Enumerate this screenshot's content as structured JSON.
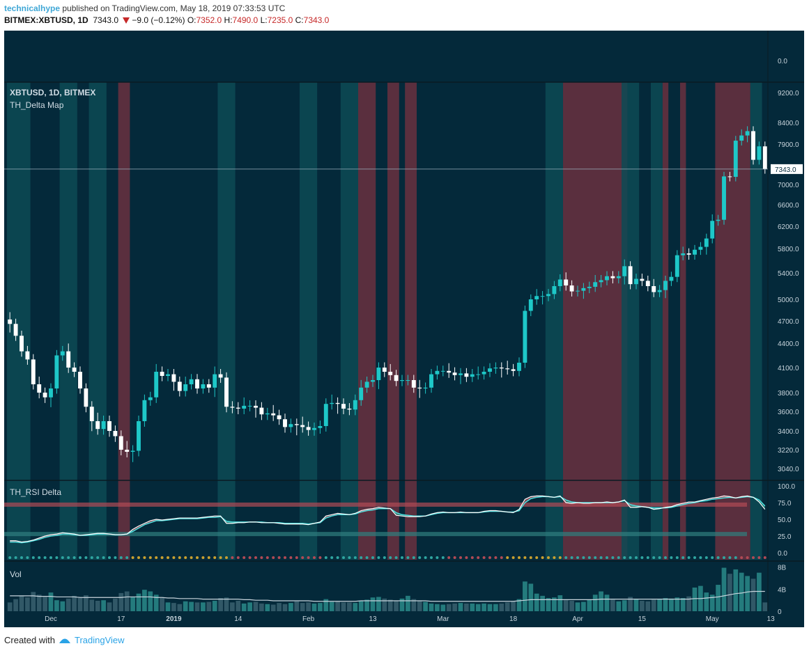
{
  "header": {
    "user": "technicalhype",
    "published": "published on TradingView.com, May 18, 2019 07:33:53 UTC",
    "symbol": "BITMEX:XBTUSD, 1D",
    "last": "7343.0",
    "change": "−9.0 (−0.12%)",
    "o_label": "O:",
    "o": "7352.0",
    "h_label": "H:",
    "h": "7490.0",
    "l_label": "L:",
    "l": "7235.0",
    "c_label": "C:",
    "c": "7343.0"
  },
  "footer": {
    "created": "Created with",
    "brand": "TradingView",
    "icon": "tradingview-logo-icon"
  },
  "colors": {
    "background": "#04293a",
    "border": "#1a4a60",
    "text": "#c8d4dc",
    "bull": "#1ec8c8",
    "bear": "#ffffff",
    "red_band": "#6a3040",
    "teal_band": "#0d4a55",
    "rsi_line": "#ffffff",
    "rsi_signal": "#4fe0e0",
    "rsi_up_fill": "#2f8f7f",
    "rsi_down_fill": "#a84a55",
    "overbought": "#b04a55",
    "oversold": "#2f7f7f",
    "wm_s": "#e05050",
    "wm_b": "#f0a030"
  },
  "chart_data": [
    {
      "type": "line",
      "title": "",
      "panel": "top-strip",
      "values": [
        0.0
      ],
      "ytick": "0.0"
    },
    {
      "type": "candlestick",
      "title": "XBTUSD, 1D, BITMEX",
      "indicator": "TH_Delta Map",
      "last_price": "7343.0",
      "ylim": [
        2950,
        9350
      ],
      "yticks": [
        {
          "v": 9200,
          "label": "9200.0"
        },
        {
          "v": 8400,
          "label": "8400.0"
        },
        {
          "v": 7900,
          "label": "7900.0"
        },
        {
          "v": 7000,
          "label": "7000.0"
        },
        {
          "v": 6600,
          "label": "6600.0"
        },
        {
          "v": 6200,
          "label": "6200.0"
        },
        {
          "v": 5800,
          "label": "5800.0"
        },
        {
          "v": 5400,
          "label": "5400.0"
        },
        {
          "v": 5000,
          "label": "5000.0"
        },
        {
          "v": 4700,
          "label": "4700.0"
        },
        {
          "v": 4400,
          "label": "4400.0"
        },
        {
          "v": 4100,
          "label": "4100.0"
        },
        {
          "v": 3800,
          "label": "3800.0"
        },
        {
          "v": 3600,
          "label": "3600.0"
        },
        {
          "v": 3400,
          "label": "3400.0"
        },
        {
          "v": 3220,
          "label": "3220.0"
        },
        {
          "v": 3040,
          "label": "3040.0"
        }
      ],
      "x_tick_labels": [
        {
          "i": 7,
          "label": "Dec"
        },
        {
          "i": 19,
          "label": "17"
        },
        {
          "i": 28,
          "label": "2019"
        },
        {
          "i": 39,
          "label": "14"
        },
        {
          "i": 51,
          "label": "Feb"
        },
        {
          "i": 62,
          "label": "13"
        },
        {
          "i": 74,
          "label": "Mar"
        },
        {
          "i": 86,
          "label": "18"
        },
        {
          "i": 97,
          "label": "Apr"
        },
        {
          "i": 108,
          "label": "15"
        },
        {
          "i": 120,
          "label": "May"
        },
        {
          "i": 130,
          "label": "13"
        }
      ],
      "close": [
        4660,
        4500,
        4300,
        4200,
        3900,
        3800,
        3750,
        3850,
        4250,
        4300,
        4100,
        4050,
        3850,
        3650,
        3500,
        3420,
        3500,
        3400,
        3350,
        3220,
        3200,
        3210,
        3500,
        3720,
        3750,
        4050,
        4000,
        4020,
        3930,
        3820,
        3900,
        3960,
        3850,
        3900,
        3860,
        4020,
        3980,
        3650,
        3640,
        3630,
        3660,
        3660,
        3640,
        3570,
        3580,
        3560,
        3520,
        3440,
        3470,
        3460,
        3440,
        3410,
        3430,
        3450,
        3680,
        3690,
        3680,
        3630,
        3620,
        3720,
        3860,
        3930,
        3950,
        4100,
        4050,
        4010,
        3940,
        3950,
        3950,
        3860,
        3850,
        3860,
        4020,
        4060,
        4060,
        4040,
        4010,
        4030,
        3990,
        4020,
        4020,
        4050,
        4090,
        4100,
        4090,
        4080,
        4060,
        4160,
        4840,
        5000,
        5050,
        5050,
        5080,
        5200,
        5300,
        5210,
        5120,
        5130,
        5170,
        5190,
        5260,
        5290,
        5350,
        5320,
        5350,
        5510,
        5230,
        5310,
        5280,
        5200,
        5110,
        5140,
        5280,
        5340,
        5690,
        5720,
        5700,
        5780,
        5830,
        5980,
        6300,
        6320,
        7180,
        7170,
        7980,
        8100,
        8200,
        7550,
        7850,
        7343
      ],
      "red_bands": [
        [
          19,
          20
        ],
        [
          60,
          62
        ],
        [
          65,
          66
        ],
        [
          68,
          69
        ],
        [
          95,
          105
        ],
        [
          112,
          112
        ],
        [
          115,
          115
        ],
        [
          121,
          126
        ]
      ],
      "teal_bands": [
        [
          0,
          3
        ],
        [
          9,
          11
        ],
        [
          14,
          16
        ],
        [
          36,
          38
        ],
        [
          50,
          52
        ],
        [
          57,
          59
        ],
        [
          92,
          94
        ],
        [
          105,
          107
        ],
        [
          110,
          111
        ],
        [
          127,
          128
        ]
      ]
    },
    {
      "type": "line",
      "title": "TH_RSI Delta",
      "ylim": [
        0,
        100
      ],
      "yticks": [
        {
          "v": 100,
          "label": "100.0"
        },
        {
          "v": 75,
          "label": "75.0"
        },
        {
          "v": 50,
          "label": "50.0"
        },
        {
          "v": 25,
          "label": "25.0"
        },
        {
          "v": 0,
          "label": "0.0"
        }
      ],
      "overbought": 72,
      "oversold": 28,
      "series": [
        {
          "values": [
            18,
            18,
            16,
            17,
            19,
            22,
            25,
            27,
            28,
            30,
            29,
            28,
            26,
            27,
            28,
            29,
            29,
            28,
            27,
            27,
            28,
            35,
            40,
            44,
            48,
            50,
            49,
            50,
            51,
            52,
            52,
            52,
            52,
            53,
            54,
            55,
            55,
            44,
            44,
            45,
            45,
            46,
            46,
            45,
            45,
            45,
            44,
            43,
            43,
            43,
            43,
            42,
            44,
            46,
            55,
            57,
            59,
            58,
            57,
            59,
            63,
            65,
            66,
            68,
            67,
            66,
            56,
            55,
            54,
            54,
            54,
            55,
            58,
            60,
            61,
            60,
            60,
            61,
            60,
            60,
            60,
            62,
            63,
            63,
            62,
            61,
            60,
            65,
            80,
            84,
            85,
            85,
            84,
            83,
            85,
            75,
            74,
            75,
            74,
            74,
            75,
            75,
            76,
            75,
            76,
            79,
            68,
            68,
            69,
            68,
            65,
            66,
            68,
            69,
            72,
            74,
            76,
            76,
            78,
            80,
            82,
            83,
            85,
            84,
            82,
            84,
            85,
            83,
            76,
            65
          ]
        },
        {
          "values": [
            16,
            16,
            15,
            16,
            18,
            20,
            23,
            25,
            26,
            28,
            28,
            27,
            26,
            26,
            27,
            28,
            28,
            28,
            27,
            27,
            28,
            32,
            37,
            42,
            45,
            48,
            48,
            49,
            50,
            51,
            51,
            51,
            51,
            52,
            53,
            53,
            54,
            47,
            46,
            46,
            46,
            46,
            46,
            46,
            45,
            45,
            45,
            44,
            44,
            44,
            44,
            43,
            44,
            45,
            52,
            55,
            57,
            57,
            57,
            58,
            61,
            63,
            64,
            66,
            66,
            66,
            60,
            57,
            56,
            55,
            55,
            55,
            57,
            59,
            60,
            60,
            60,
            60,
            60,
            60,
            60,
            61,
            62,
            62,
            62,
            61,
            61,
            63,
            75,
            81,
            83,
            84,
            84,
            83,
            84,
            79,
            76,
            75,
            75,
            75,
            75,
            75,
            75,
            75,
            76,
            78,
            72,
            70,
            69,
            68,
            67,
            67,
            67,
            68,
            70,
            72,
            74,
            75,
            77,
            78,
            80,
            81,
            82,
            83,
            82,
            83,
            84,
            83,
            79,
            70
          ]
        }
      ],
      "dot_colors": "tttttttttttttttttttttyyyyyyyyyyyyyyyyyrrrrrrrrrrrrrrrrtttttttttttttttttttttrrrrrrrrrryyyyyyyyyyttttttttttttttttttttttttttttttrrrrrrrrrrttttttttttttt"
    },
    {
      "type": "bar",
      "title": "Vol",
      "ylim": [
        0,
        8
      ],
      "yticks": [
        {
          "v": 8,
          "label": "8B"
        },
        {
          "v": 4,
          "label": "4B"
        },
        {
          "v": 0,
          "label": "0"
        }
      ],
      "values": [
        1.6,
        2.2,
        2.8,
        2.5,
        3.5,
        3.0,
        2.6,
        3.4,
        2.0,
        1.8,
        2.3,
        2.8,
        2.4,
        2.9,
        2.1,
        1.9,
        2.0,
        1.6,
        2.3,
        3.3,
        3.6,
        2.6,
        3.2,
        3.9,
        3.6,
        3.0,
        2.4,
        1.6,
        1.5,
        1.3,
        1.8,
        1.7,
        1.6,
        1.6,
        1.7,
        1.9,
        2.4,
        2.5,
        1.6,
        1.9,
        1.4,
        1.6,
        1.7,
        1.4,
        1.3,
        1.2,
        1.5,
        1.3,
        1.5,
        1.8,
        1.5,
        1.6,
        1.4,
        1.5,
        2.2,
        1.7,
        1.8,
        1.6,
        1.6,
        1.5,
        1.9,
        2.1,
        2.5,
        2.6,
        2.3,
        2.1,
        1.9,
        2.3,
        2.8,
        2.2,
        1.9,
        1.7,
        1.4,
        1.3,
        1.2,
        1.3,
        1.4,
        1.5,
        1.4,
        1.4,
        1.3,
        1.4,
        1.3,
        1.3,
        1.4,
        1.6,
        1.8,
        2.2,
        5.4,
        5.0,
        3.2,
        2.8,
        2.4,
        2.5,
        2.9,
        2.0,
        1.9,
        1.6,
        1.7,
        2.1,
        3.0,
        3.6,
        3.0,
        2.1,
        1.8,
        2.0,
        2.6,
        2.2,
        1.9,
        1.8,
        2.1,
        2.2,
        2.4,
        2.3,
        2.5,
        2.4,
        2.7,
        4.3,
        4.6,
        3.4,
        3.0,
        4.8,
        7.9,
        6.8,
        7.6,
        7.0,
        6.4,
        5.9,
        7.0,
        1.6
      ],
      "ma_line": [
        2.8,
        2.8,
        2.8,
        2.8,
        2.8,
        2.7,
        2.7,
        2.7,
        2.6,
        2.6,
        2.6,
        2.6,
        2.5,
        2.5,
        2.5,
        2.5,
        2.5,
        2.5,
        2.5,
        2.5,
        2.6,
        2.6,
        2.6,
        2.6,
        2.6,
        2.5,
        2.5,
        2.4,
        2.4,
        2.3,
        2.3,
        2.3,
        2.3,
        2.2,
        2.2,
        2.2,
        2.2,
        2.2,
        2.2,
        2.2,
        2.1,
        2.1,
        2.0,
        2.0,
        2.0,
        1.9,
        1.9,
        1.9,
        1.9,
        1.9,
        1.9,
        1.9,
        1.8,
        1.8,
        1.8,
        1.8,
        1.8,
        1.8,
        1.8,
        1.8,
        1.9,
        1.9,
        1.9,
        1.9,
        1.9,
        1.9,
        1.9,
        1.9,
        1.9,
        1.9,
        1.9,
        1.9,
        1.8,
        1.8,
        1.8,
        1.8,
        1.8,
        1.8,
        1.8,
        1.8,
        1.8,
        1.8,
        1.8,
        1.8,
        1.8,
        1.8,
        1.8,
        1.9,
        2.0,
        2.1,
        2.1,
        2.1,
        2.1,
        2.1,
        2.1,
        2.1,
        2.1,
        2.1,
        2.1,
        2.1,
        2.1,
        2.2,
        2.2,
        2.2,
        2.2,
        2.2,
        2.2,
        2.2,
        2.2,
        2.2,
        2.2,
        2.2,
        2.2,
        2.2,
        2.2,
        2.2,
        2.2,
        2.3,
        2.3,
        2.4,
        2.5,
        2.6,
        2.8,
        3.0,
        3.2,
        3.3,
        3.5,
        3.6,
        3.6,
        3.6
      ]
    }
  ]
}
